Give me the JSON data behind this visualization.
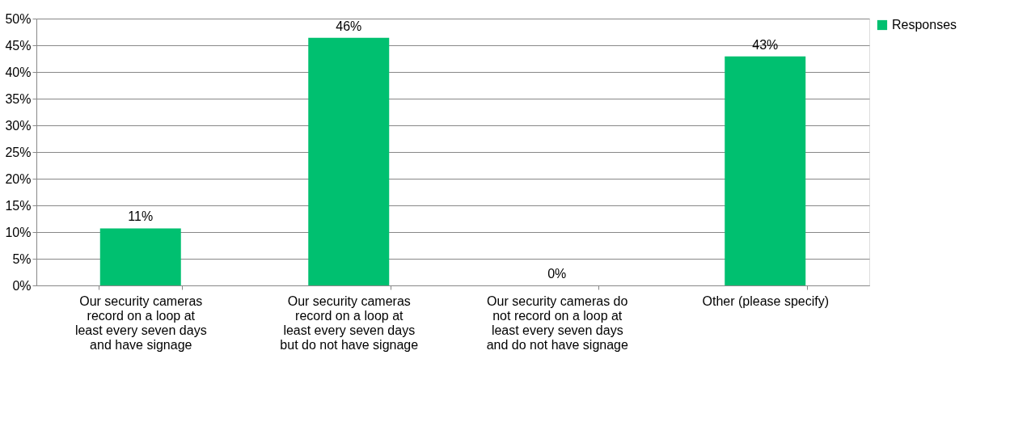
{
  "chart_data": {
    "type": "bar",
    "categories": [
      "Our security cameras record on a loop at least every seven days and have signage",
      "Our security cameras record on a loop at least every seven days but do not have signage",
      "Our security cameras do not record on a loop at least every seven days and do not have signage",
      "Other (please specify)"
    ],
    "series": [
      {
        "name": "Responses",
        "color": "#00c070",
        "values": [
          10.7,
          46.4,
          0,
          42.9
        ],
        "value_labels": [
          "11%",
          "46%",
          "0%",
          "43%"
        ]
      }
    ],
    "ylim": [
      0,
      50
    ],
    "yticks": [
      {
        "value": 0,
        "label": "0%"
      },
      {
        "value": 5,
        "label": "5%"
      },
      {
        "value": 10,
        "label": "10%"
      },
      {
        "value": 15,
        "label": "15%"
      },
      {
        "value": 20,
        "label": "20%"
      },
      {
        "value": 25,
        "label": "25%"
      },
      {
        "value": 30,
        "label": "30%"
      },
      {
        "value": 35,
        "label": "35%"
      },
      {
        "value": 40,
        "label": "40%"
      },
      {
        "value": 45,
        "label": "45%"
      },
      {
        "value": 50,
        "label": "50%"
      }
    ],
    "grid": "y",
    "legend": "right"
  }
}
